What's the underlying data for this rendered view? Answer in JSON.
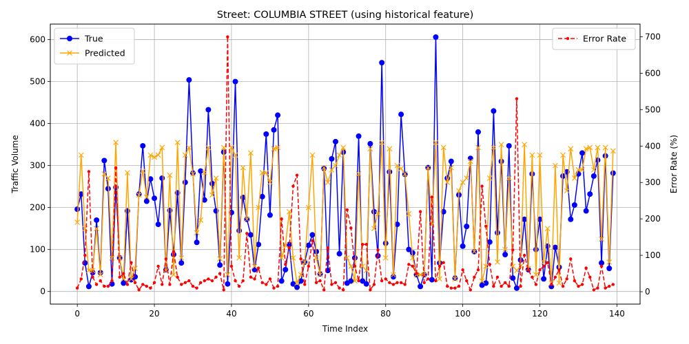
{
  "chart_data": {
    "type": "line",
    "title": "Street: COLUMBIA STREET (using historical feature)",
    "xlabel": "Time Index",
    "ylabel": "Traffic Volume",
    "y2label": "Error Rate (%)",
    "xlim": [
      -7,
      146
    ],
    "ylim": [
      -30,
      637
    ],
    "y2lim": [
      -34,
      735
    ],
    "xticks": [
      0,
      20,
      40,
      60,
      80,
      100,
      120,
      140
    ],
    "yticks": [
      0,
      100,
      200,
      300,
      400,
      500,
      600
    ],
    "y2ticks": [
      0,
      100,
      200,
      300,
      400,
      500,
      600,
      700
    ],
    "grid": true,
    "legend_left_position": "upper-left",
    "legend_right_position": "upper-right",
    "x": [
      0,
      1,
      2,
      3,
      4,
      5,
      6,
      7,
      8,
      9,
      10,
      11,
      12,
      13,
      14,
      15,
      16,
      17,
      18,
      19,
      20,
      21,
      22,
      23,
      24,
      25,
      26,
      27,
      28,
      29,
      30,
      31,
      32,
      33,
      34,
      35,
      36,
      37,
      38,
      39,
      40,
      41,
      42,
      43,
      44,
      45,
      46,
      47,
      48,
      49,
      50,
      51,
      52,
      53,
      54,
      55,
      56,
      57,
      58,
      59,
      60,
      61,
      62,
      63,
      64,
      65,
      66,
      67,
      68,
      69,
      70,
      71,
      72,
      73,
      74,
      75,
      76,
      77,
      78,
      79,
      80,
      81,
      82,
      83,
      84,
      85,
      86,
      87,
      88,
      89,
      90,
      91,
      92,
      93,
      94,
      95,
      96,
      97,
      98,
      99,
      100,
      101,
      102,
      103,
      104,
      105,
      106,
      107,
      108,
      109,
      110,
      111,
      112,
      113,
      114,
      115,
      116,
      117,
      118,
      119,
      120,
      121,
      122,
      123,
      124,
      125,
      126,
      127,
      128,
      129,
      130,
      131,
      132,
      133,
      134,
      135,
      136,
      137,
      138,
      139
    ],
    "series": [
      {
        "name": "True",
        "axis": "left",
        "color": "#0000ff",
        "style": "solid",
        "marker": "circle",
        "values": [
          196,
          232,
          68,
          12,
          45,
          170,
          45,
          312,
          245,
          18,
          248,
          80,
          20,
          192,
          28,
          35,
          232,
          347,
          215,
          268,
          222,
          160,
          270,
          52,
          193,
          88,
          235,
          68,
          260,
          504,
          282,
          117,
          287,
          218,
          433,
          257,
          192,
          63,
          332,
          18,
          188,
          500,
          145,
          224,
          172,
          135,
          52,
          112,
          226,
          375,
          182,
          385,
          420,
          25,
          52,
          112,
          18,
          10,
          25,
          70,
          110,
          135,
          95,
          42,
          293,
          50,
          316,
          357,
          90,
          332,
          20,
          25,
          80,
          370,
          25,
          18,
          352,
          190,
          85,
          545,
          115,
          285,
          35,
          160,
          422,
          279,
          100,
          92,
          40,
          12,
          40,
          295,
          28,
          606,
          68,
          190,
          270,
          310,
          32,
          230,
          108,
          155,
          317,
          95,
          380,
          15,
          20,
          118,
          430,
          140,
          310,
          88,
          347,
          32,
          8,
          75,
          172,
          52,
          280,
          100,
          172,
          30,
          108,
          12,
          105,
          58,
          275,
          285,
          172,
          206,
          280,
          330,
          192,
          232,
          275,
          313,
          68,
          323,
          55,
          282
        ]
      },
      {
        "name": "Predicted",
        "axis": "left",
        "color": "#ffa500",
        "style": "solid",
        "marker": "x",
        "values": [
          165,
          325,
          150,
          50,
          50,
          150,
          40,
          280,
          270,
          80,
          355,
          80,
          30,
          283,
          30,
          55,
          230,
          287,
          225,
          325,
          320,
          325,
          343,
          50,
          277,
          40,
          355,
          80,
          325,
          343,
          280,
          140,
          170,
          283,
          343,
          230,
          270,
          78,
          343,
          40,
          343,
          325,
          80,
          295,
          172,
          330,
          60,
          200,
          283,
          283,
          260,
          340,
          343,
          80,
          110,
          190,
          80,
          20,
          40,
          70,
          200,
          325,
          80,
          40,
          295,
          260,
          290,
          300,
          325,
          343,
          80,
          60,
          25,
          280,
          60,
          50,
          340,
          150,
          185,
          355,
          80,
          340,
          40,
          300,
          293,
          280,
          185,
          80,
          40,
          40,
          40,
          295,
          160,
          355,
          30,
          343,
          260,
          295,
          30,
          240,
          260,
          270,
          310,
          95,
          343,
          25,
          60,
          270,
          343,
          70,
          350,
          100,
          270,
          60,
          50,
          60,
          350,
          55,
          325,
          40,
          325,
          70,
          150,
          20,
          300,
          20,
          325,
          240,
          340,
          270,
          290,
          290,
          340,
          343,
          290,
          343,
          125,
          343,
          70,
          335
        ]
      },
      {
        "name": "Error Rate",
        "axis": "right",
        "color": "#ff0000",
        "style": "dashed",
        "marker": "dot",
        "values": [
          10,
          35,
          100,
          330,
          40,
          20,
          30,
          15,
          15,
          30,
          340,
          40,
          50,
          20,
          80,
          25,
          5,
          20,
          15,
          10,
          25,
          70,
          20,
          90,
          20,
          110,
          40,
          20,
          25,
          30,
          15,
          10,
          25,
          30,
          35,
          30,
          40,
          50,
          5,
          700,
          70,
          30,
          15,
          30,
          160,
          40,
          35,
          65,
          25,
          20,
          35,
          10,
          15,
          200,
          75,
          120,
          290,
          320,
          90,
          20,
          70,
          140,
          25,
          30,
          5,
          120,
          20,
          25,
          10,
          5,
          225,
          175,
          70,
          30,
          130,
          130,
          5,
          20,
          115,
          30,
          35,
          25,
          20,
          25,
          25,
          20,
          75,
          70,
          50,
          220,
          25,
          35,
          260,
          30,
          70,
          80,
          15,
          10,
          10,
          15,
          60,
          30,
          5,
          40,
          60,
          290,
          180,
          75,
          15,
          40,
          15,
          25,
          15,
          115,
          530,
          15,
          100,
          60,
          40,
          20,
          60,
          70,
          80,
          20,
          40,
          60,
          15,
          35,
          90,
          30,
          15,
          20,
          65,
          40,
          5,
          10,
          70,
          10,
          15,
          20
        ]
      }
    ]
  }
}
